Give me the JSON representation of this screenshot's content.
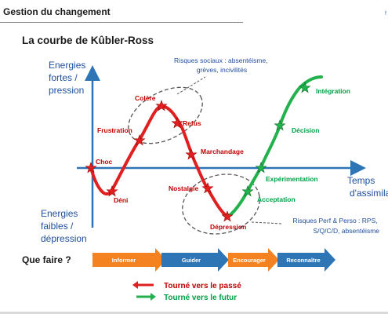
{
  "header": {
    "title": "Gestion du changement",
    "page_mark": "f"
  },
  "diagram": {
    "title": "La courbe de Kûbler-Ross",
    "y_axis": {
      "top_label": [
        "Energies",
        "fortes /",
        "pression"
      ],
      "bottom_label": [
        "Energies",
        "faibles /",
        "dépression"
      ]
    },
    "x_axis": {
      "label": [
        "Temps",
        "d'assimilation"
      ]
    },
    "stages": {
      "choc": "Choc",
      "deni": "Déni",
      "frustration": "Frustration",
      "colere": "Colère",
      "refus": "Refus",
      "marchandage": "Marchandage",
      "nostalgie": "Nostalgie",
      "depression": "Dépression",
      "acceptation": "Acceptation",
      "experimentation": "Expérimentation",
      "decision": "Décision",
      "integration": "Intégration"
    },
    "callouts": {
      "social_risks": [
        "Risques sociaux : absentéisme,",
        "grèves, incivilités"
      ],
      "perf_risks": [
        "Risques Perf & Perso : RPS,",
        "S/Q/C/D, absentéisme"
      ]
    },
    "que_faire": {
      "label": "Que faire ?",
      "steps": [
        "Informer",
        "Guider",
        "Encourager",
        "Reconnaître"
      ]
    },
    "legend": [
      {
        "label": "Tourné vers le passé",
        "color": "#e02020"
      },
      {
        "label": "Tourné vers le futur",
        "color": "#22b14c"
      }
    ],
    "colors": {
      "past": "#e02020",
      "future": "#22b14c",
      "axis": "#2e75b6",
      "arrow_orange": "#f58220",
      "arrow_blue": "#2e75b6",
      "label_red": "#c00000",
      "label_green": "#00a046",
      "label_blue": "#1f4e9c"
    }
  }
}
